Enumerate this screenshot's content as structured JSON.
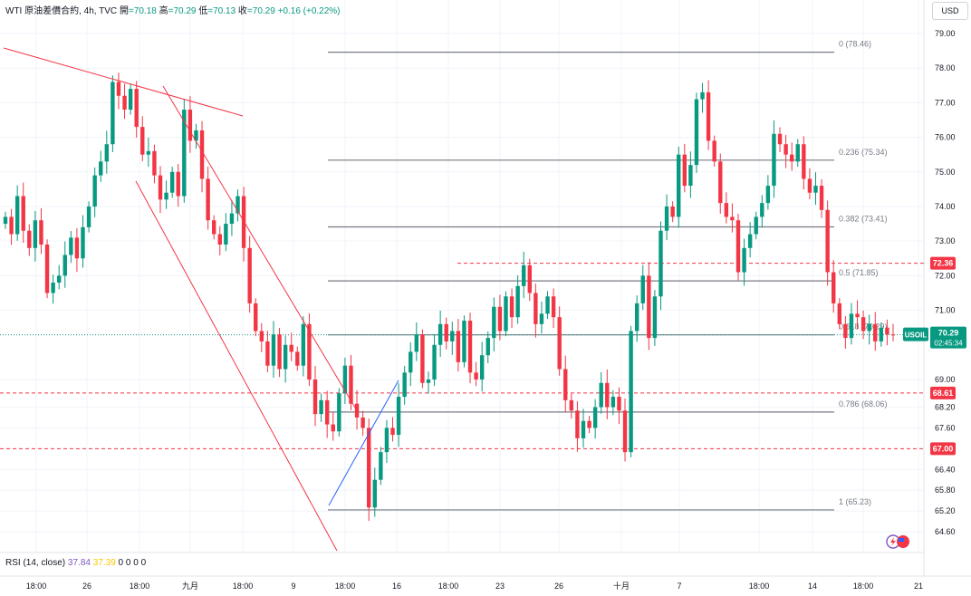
{
  "header": {
    "symbol": "WTI 原油差價合約, 4h, TVC",
    "open_label": "開",
    "open": "=70.18",
    "high_label": "高",
    "high": "=70.29",
    "low_label": "低",
    "low": "=70.13",
    "close_label": "收",
    "close": "=70.29",
    "change": "+0.16 (+0.22%)"
  },
  "currency": "USD",
  "rsi": {
    "label": "RSI (14, close)",
    "v1": "37.84",
    "v2": "37.39",
    "rest": "0 0 0 0"
  },
  "colors": {
    "up": "#089981",
    "down": "#f23645",
    "grid": "#f0f3fa",
    "fib": "#787b86",
    "trend": "#f23645",
    "blue": "#2962ff"
  },
  "chart_data": {
    "type": "candlestick",
    "title": "WTI 原油差價合約, 4h, TVC",
    "y_axis_ticks": [
      "79.00",
      "78.00",
      "77.00",
      "76.00",
      "75.00",
      "74.00",
      "73.00",
      "72.00",
      "71.00",
      "69.00",
      "68.20",
      "67.60",
      "66.40",
      "65.80",
      "65.20",
      "64.60"
    ],
    "x_axis_ticks": [
      "18:00",
      "26",
      "18:00",
      "九月",
      "18:00",
      "9",
      "18:00",
      "16",
      "18:00",
      "23",
      "26",
      "十月",
      "7",
      "18:00",
      "14",
      "18:00",
      "21"
    ],
    "fib_levels": [
      {
        "label": "0 (78.46)",
        "value": 78.46
      },
      {
        "label": "0.236 (75.34)",
        "value": 75.34
      },
      {
        "label": "0.382 (73.41)",
        "value": 73.41
      },
      {
        "label": "0.5 (71.85)",
        "value": 71.85
      },
      {
        "label": "0.618 (70.29)",
        "value": 70.29
      },
      {
        "label": "0.786 (68.06)",
        "value": 68.06
      },
      {
        "label": "1 (65.23)",
        "value": 65.23
      }
    ],
    "price_tags": [
      {
        "label": "72.36",
        "value": 72.36,
        "color": "#f23645"
      },
      {
        "label": "68.61",
        "value": 68.61,
        "color": "#f23645"
      },
      {
        "label": "67.00",
        "value": 67.0,
        "color": "#f23645"
      }
    ],
    "last_price": {
      "symbol": "USOIL",
      "value": "70.29",
      "countdown": "02:45:34"
    },
    "path_points": [
      73.7,
      73.2,
      74.3,
      73.3,
      72.8,
      73.6,
      72.9,
      71.5,
      71.8,
      72.0,
      72.6,
      73.1,
      72.5,
      73.4,
      74.0,
      74.9,
      75.3,
      75.8,
      77.6,
      77.2,
      76.8,
      77.4,
      76.3,
      75.5,
      75.6,
      74.9,
      74.2,
      74.4,
      75.0,
      74.3,
      76.8,
      75.9,
      76.2,
      74.8,
      73.6,
      73.2,
      72.9,
      73.5,
      73.8,
      74.3,
      72.8,
      71.2,
      70.4,
      70.1,
      69.4,
      70.3,
      69.3,
      70.0,
      69.8,
      69.4,
      70.6,
      69.0,
      68.0,
      68.4,
      67.7,
      67.5,
      68.6,
      69.4,
      68.3,
      67.9,
      67.6,
      65.3,
      66.1,
      66.9,
      67.6,
      67.4,
      68.5,
      69.2,
      69.8,
      70.3,
      68.9,
      69.0,
      70.0,
      70.6,
      70.1,
      70.4,
      69.5,
      70.7,
      69.2,
      69.0,
      69.7,
      70.2,
      71.1,
      70.4,
      71.4,
      70.8,
      71.7,
      72.3,
      71.5,
      70.6,
      70.9,
      71.4,
      70.8,
      69.3,
      68.4,
      68.1,
      67.3,
      67.8,
      67.6,
      68.2,
      68.9,
      68.2,
      68.5,
      68.1,
      66.9,
      70.4,
      71.2,
      72.0,
      70.2,
      71.4,
      73.3,
      74.0,
      73.7,
      75.5,
      74.6,
      75.2,
      77.1,
      77.3,
      75.9,
      75.3,
      74.1,
      73.7,
      73.6,
      72.1,
      72.8,
      73.2,
      73.7,
      74.1,
      74.6,
      76.1,
      75.8,
      75.5,
      75.3,
      75.8,
      74.8,
      74.4,
      74.6,
      73.9,
      72.1,
      71.2,
      70.6,
      70.2,
      70.9,
      70.8,
      70.4,
      70.6,
      70.1,
      70.5,
      70.3,
      70.29
    ],
    "ylim": [
      64.3,
      79.3
    ]
  }
}
